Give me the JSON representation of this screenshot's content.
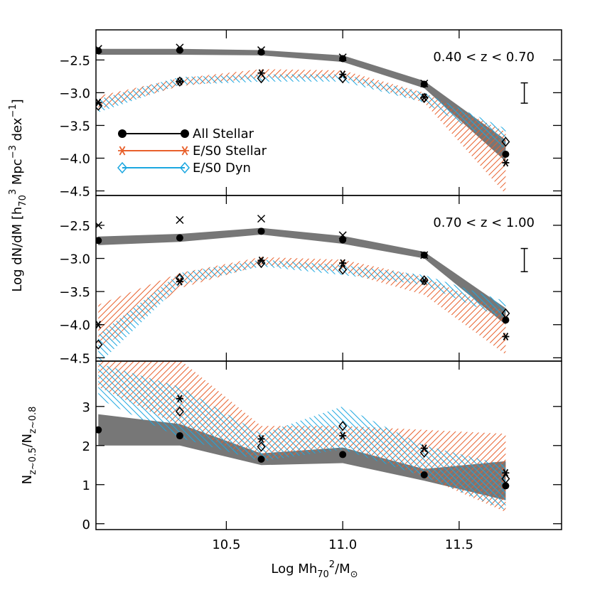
{
  "chart_data": [
    {
      "type": "band_scatter",
      "ylabel": [
        "Log dN/dM [h",
        "70",
        "3",
        " Mpc",
        "−3",
        " dex",
        "−1",
        "]"
      ],
      "annotation": "0.40 < z < 0.70",
      "x": [
        9.95,
        10.3,
        10.65,
        11.0,
        11.35,
        11.7
      ],
      "xlim": [
        9.94,
        11.94
      ],
      "ylim": [
        -4.57,
        -2.04
      ],
      "yticks": [
        {
          "value": -2.5,
          "label": "−2.5"
        },
        {
          "value": -3,
          "label": "−3.0"
        },
        {
          "value": -3.5,
          "label": "−3.5"
        },
        {
          "value": -4,
          "label": "−4.0"
        },
        {
          "value": -4.5,
          "label": "−4.5"
        }
      ],
      "error_bar": {
        "x": 11.78,
        "y": [
          -3.16,
          -2.85
        ]
      },
      "series": [
        {
          "name": "All Stellar",
          "color": "#000000",
          "band_color": "#777777",
          "marker": "dot",
          "band_style": "solid",
          "values": [
            -2.36,
            -2.35,
            -2.38,
            -2.48,
            -2.87,
            -3.94
          ],
          "band_lower": [
            -2.42,
            -2.42,
            -2.43,
            -2.53,
            -2.93,
            -4.05
          ],
          "band_upper": [
            -2.33,
            -2.33,
            -2.35,
            -2.43,
            -2.82,
            -3.72
          ]
        },
        {
          "name": "E/S0 Stellar",
          "color": "#e8602c",
          "band_color": "#e8602c",
          "marker": "asterisk",
          "band_style": "hatch-right",
          "values": [
            -3.15,
            -2.83,
            -2.7,
            -2.72,
            -3.07,
            -4.07
          ],
          "band_lower": [
            -3.25,
            -2.9,
            -2.77,
            -2.78,
            -3.15,
            -4.55
          ],
          "band_upper": [
            -3.05,
            -2.78,
            -2.64,
            -2.66,
            -3.0,
            -3.6
          ]
        },
        {
          "name": "E/S0 Dyn",
          "color": "#1ca7e0",
          "band_color": "#1ca7e0",
          "marker": "diamond",
          "band_style": "hatch-left",
          "values": [
            -3.2,
            -2.83,
            -2.78,
            -2.78,
            -3.08,
            -3.75
          ],
          "band_lower": [
            -3.3,
            -2.88,
            -2.83,
            -2.83,
            -3.15,
            -3.85
          ],
          "band_upper": [
            -3.1,
            -2.76,
            -2.72,
            -2.72,
            -3.0,
            -3.55
          ]
        },
        {
          "color": "#000000",
          "marker": "cross",
          "values": [
            -2.33,
            -2.31,
            -2.35,
            -2.46,
            -2.86,
            null
          ]
        }
      ]
    },
    {
      "type": "band_scatter",
      "annotation": "0.70 < z < 1.00",
      "x": [
        9.95,
        10.3,
        10.65,
        11.0,
        11.35,
        11.7
      ],
      "xlim": [
        9.94,
        11.94
      ],
      "ylim": [
        -4.55,
        -2.05
      ],
      "yticks": [
        {
          "value": -2.5,
          "label": "−2.5"
        },
        {
          "value": -3,
          "label": "−3.0"
        },
        {
          "value": -3.5,
          "label": "−3.5"
        },
        {
          "value": -4,
          "label": "−4.0"
        },
        {
          "value": -4.5,
          "label": "−4.5"
        }
      ],
      "error_bar": {
        "x": 11.78,
        "y": [
          -3.2,
          -2.85
        ]
      },
      "series": [
        {
          "color": "#000000",
          "band_color": "#777777",
          "marker": "dot",
          "band_style": "solid",
          "values": [
            -2.73,
            -2.69,
            -2.59,
            -2.72,
            -2.95,
            -3.93
          ],
          "band_lower": [
            -2.8,
            -2.75,
            -2.64,
            -2.78,
            -3.0,
            -4.0
          ],
          "band_upper": [
            -2.67,
            -2.63,
            -2.54,
            -2.66,
            -2.9,
            -3.75
          ]
        },
        {
          "color": "#e8602c",
          "band_color": "#e8602c",
          "marker": "asterisk",
          "band_style": "hatch-right",
          "values": [
            -4.0,
            -3.35,
            -3.03,
            -3.07,
            -3.34,
            -4.18
          ],
          "band_lower": [
            -4.4,
            -3.45,
            -3.1,
            -3.2,
            -3.55,
            -4.45
          ],
          "band_upper": [
            -3.7,
            -3.22,
            -2.98,
            -3.02,
            -3.28,
            -3.8
          ]
        },
        {
          "color": "#1ca7e0",
          "band_color": "#1ca7e0",
          "marker": "diamond",
          "band_style": "hatch-left",
          "values": [
            -4.3,
            -3.3,
            -3.07,
            -3.17,
            -3.33,
            -3.83
          ],
          "band_lower": [
            -4.6,
            -3.4,
            -3.12,
            -3.25,
            -3.4,
            -3.92
          ],
          "band_upper": [
            -4.15,
            -3.22,
            -3.02,
            -3.1,
            -3.25,
            -3.65
          ]
        },
        {
          "color": "#000000",
          "marker": "cross",
          "values": [
            -2.5,
            -2.42,
            -2.4,
            -2.65,
            -2.95,
            null
          ]
        }
      ]
    },
    {
      "type": "band_scatter",
      "ylabel": [
        "N",
        "z~0.5",
        "/N",
        "z~0.8"
      ],
      "xlabel": [
        "Log Mh",
        "70",
        "2",
        "/M",
        "⊙"
      ],
      "x": [
        9.95,
        10.3,
        10.65,
        11.0,
        11.35,
        11.7
      ],
      "xlim": [
        9.94,
        11.94
      ],
      "xticks": [
        10.5,
        {
          "value": 11,
          "label": "11.0"
        },
        11.5
      ],
      "ylim": [
        -0.15,
        4.16
      ],
      "yticks": [
        0,
        1,
        2,
        3
      ],
      "series": [
        {
          "color": "#000000",
          "band_color": "#777777",
          "marker": "dot",
          "band_style": "solid",
          "values": [
            2.4,
            2.25,
            1.65,
            1.77,
            1.25,
            0.97
          ],
          "band_lower": [
            2.0,
            2.0,
            1.5,
            1.55,
            1.1,
            0.6
          ],
          "band_upper": [
            2.8,
            2.55,
            1.8,
            1.95,
            1.4,
            1.6
          ]
        },
        {
          "color": "#e8602c",
          "band_color": "#e8602c",
          "marker": "asterisk",
          "band_style": "hatch-right",
          "values": [
            null,
            3.2,
            2.17,
            2.25,
            1.93,
            1.3
          ],
          "band_lower": [
            3.5,
            2.5,
            1.6,
            2.0,
            1.2,
            0.3
          ],
          "band_upper": [
            4.2,
            4.2,
            2.5,
            2.5,
            2.4,
            2.3
          ]
        },
        {
          "color": "#1ca7e0",
          "band_color": "#1ca7e0",
          "marker": "diamond",
          "band_style": "hatch-left",
          "values": [
            null,
            2.87,
            1.97,
            2.5,
            1.82,
            1.15
          ],
          "band_lower": [
            3.2,
            2.2,
            1.6,
            1.9,
            1.2,
            0.35
          ],
          "band_upper": [
            4.1,
            3.5,
            2.3,
            3.0,
            2.0,
            1.5
          ]
        }
      ]
    }
  ]
}
